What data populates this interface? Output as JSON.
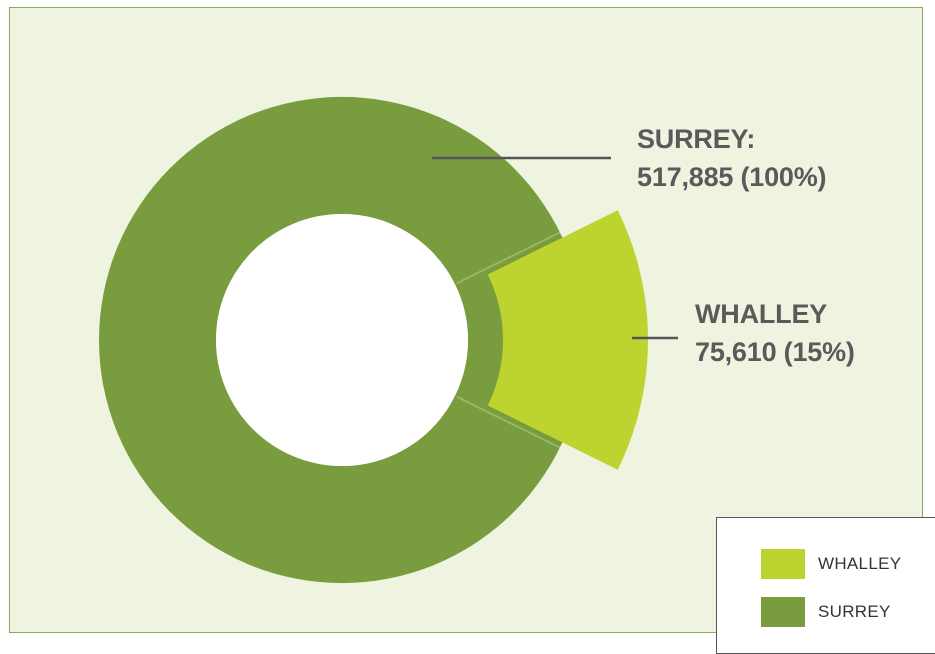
{
  "colors": {
    "surrey": "#789c3e",
    "whalley": "#bdd430",
    "hole": "#ffffff",
    "leader": "#555555"
  },
  "labels": {
    "surrey_name": "SURREY:",
    "surrey_value": "517,885 (100%)",
    "whalley_name": "WHALLEY",
    "whalley_value": "75,610 (15%)"
  },
  "legend": {
    "items": [
      {
        "label": "WHALLEY",
        "color": "#bdd430"
      },
      {
        "label": "SURREY",
        "color": "#789c3e"
      }
    ]
  },
  "chart_data": {
    "type": "pie",
    "variant": "donut",
    "series": [
      {
        "name": "SURREY",
        "value": 517885,
        "percent": 100
      },
      {
        "name": "WHALLEY",
        "value": 75610,
        "percent": 15
      }
    ],
    "title": "",
    "legend_position": "bottom-right"
  }
}
